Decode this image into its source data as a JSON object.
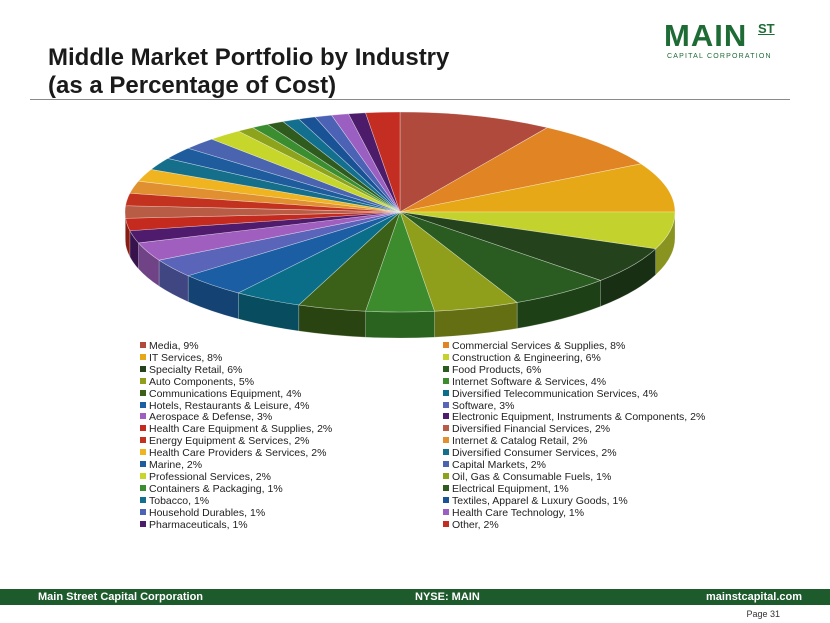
{
  "title_line1": "Middle Market Portfolio by Industry",
  "title_line2": "(as a Percentage of Cost)",
  "logo": {
    "main": "MAIN",
    "superscript": "ST",
    "tagline": "CAPITAL CORPORATION"
  },
  "footer": {
    "company": "Main Street Capital Corporation",
    "ticker": "NYSE: MAIN",
    "website": "mainstcapital.com"
  },
  "page_label": "Page  31",
  "chart_data": {
    "type": "pie",
    "title": "",
    "style": "3d-exploded",
    "legend_position": "bottom",
    "slices": [
      {
        "label": "Media, 9%",
        "value": 9,
        "color": "#b04a3c"
      },
      {
        "label": "Commercial Services & Supplies, 8%",
        "value": 8,
        "color": "#e08424"
      },
      {
        "label": "IT Services, 8%",
        "value": 8,
        "color": "#e6a816"
      },
      {
        "label": "Construction & Engineering, 6%",
        "value": 6,
        "color": "#c4d22e"
      },
      {
        "label": "Specialty Retail, 6%",
        "value": 6,
        "color": "#24431c"
      },
      {
        "label": "Food Products, 6%",
        "value": 6,
        "color": "#2a5c21"
      },
      {
        "label": "Auto Components, 5%",
        "value": 5,
        "color": "#8f9f1c"
      },
      {
        "label": "Internet Software & Services, 4%",
        "value": 4,
        "color": "#3c8c2e"
      },
      {
        "label": "Communications Equipment, 4%",
        "value": 4,
        "color": "#3b6118"
      },
      {
        "label": "Diversified Telecommunication Services, 4%",
        "value": 4,
        "color": "#0b6e88"
      },
      {
        "label": "Hotels, Restaurants & Leisure, 4%",
        "value": 4,
        "color": "#1b5ea4"
      },
      {
        "label": "Software, 3%",
        "value": 3,
        "color": "#5a64b8"
      },
      {
        "label": "Aerospace & Defense, 3%",
        "value": 3,
        "color": "#a05fbf"
      },
      {
        "label": "Electronic Equipment, Instruments & Components, 2%",
        "value": 2,
        "color": "#4f1b6c"
      },
      {
        "label": "Health Care Equipment & Supplies, 2%",
        "value": 2,
        "color": "#c42a1e"
      },
      {
        "label": "Diversified Financial Services, 2%",
        "value": 2,
        "color": "#b85c45"
      },
      {
        "label": "Energy Equipment & Services, 2%",
        "value": 2,
        "color": "#c2321e"
      },
      {
        "label": "Internet & Catalog Retail, 2%",
        "value": 2,
        "color": "#e09030"
      },
      {
        "label": "Health Care Providers & Services, 2%",
        "value": 2,
        "color": "#f0b420"
      },
      {
        "label": "Diversified Consumer Services, 2%",
        "value": 2,
        "color": "#156f8a"
      },
      {
        "label": "Marine, 2%",
        "value": 2,
        "color": "#1e5c9e"
      },
      {
        "label": "Capital Markets, 2%",
        "value": 2,
        "color": "#4a64b0"
      },
      {
        "label": "Professional Services, 2%",
        "value": 2,
        "color": "#c6d62a"
      },
      {
        "label": "Oil, Gas & Consumable Fuels, 1%",
        "value": 1,
        "color": "#8da31c"
      },
      {
        "label": "Containers & Packaging, 1%",
        "value": 1,
        "color": "#3a8e30"
      },
      {
        "label": "Electrical Equipment, 1%",
        "value": 1,
        "color": "#2f5c1e"
      },
      {
        "label": "Tobacco, 1%",
        "value": 1,
        "color": "#136f8e"
      },
      {
        "label": "Textiles, Apparel & Luxury Goods, 1%",
        "value": 1,
        "color": "#1a5296"
      },
      {
        "label": "Household Durables, 1%",
        "value": 1,
        "color": "#4c62b4"
      },
      {
        "label": "Health Care Technology, 1%",
        "value": 1,
        "color": "#9a5fc0"
      },
      {
        "label": "Pharmaceuticals, 1%",
        "value": 1,
        "color": "#4c1c6a"
      },
      {
        "label": "Other, 2%",
        "value": 2,
        "color": "#c42e22"
      }
    ]
  }
}
